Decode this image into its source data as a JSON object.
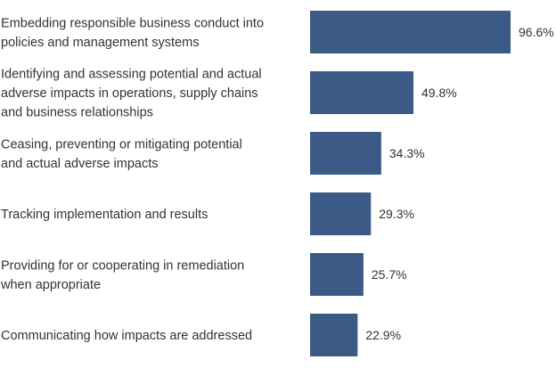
{
  "chart_data": {
    "type": "bar",
    "orientation": "horizontal",
    "title": "",
    "xlabel": "",
    "ylabel": "",
    "xlim": [
      0,
      100
    ],
    "grid": false,
    "bar_color": "#3b5a86",
    "text_color": "#333333",
    "categories": [
      [
        "Embedding responsible business conduct into",
        "policies and management systems"
      ],
      [
        "Identifying and assessing potential and actual",
        "adverse impacts in operations, supply chains",
        "and business relationships"
      ],
      [
        "Ceasing, preventing or mitigating potential",
        "and actual adverse impacts"
      ],
      [
        "Tracking implementation and results"
      ],
      [
        "Providing for or cooperating in remediation",
        "when appropriate"
      ],
      [
        "Communicating how impacts are addressed"
      ]
    ],
    "values": [
      96.6,
      49.8,
      34.3,
      29.3,
      25.7,
      22.9
    ],
    "data_labels": [
      "96.6%",
      "49.8%",
      "34.3%",
      "29.3%",
      "25.7%",
      "22.9%"
    ]
  }
}
